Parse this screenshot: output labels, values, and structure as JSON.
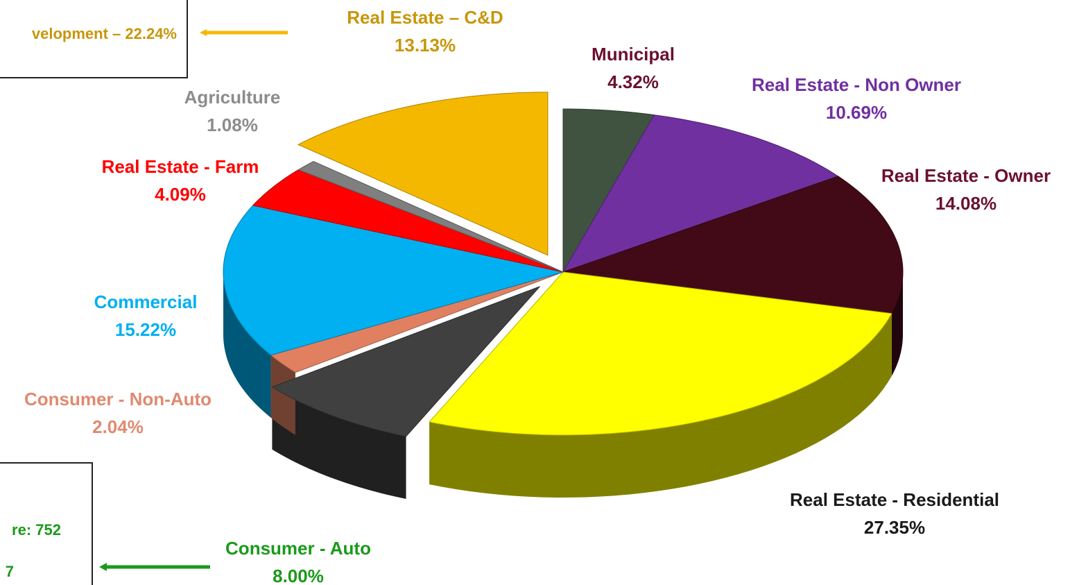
{
  "chart_data": {
    "type": "pie",
    "categories": [
      "Municipal",
      "Real Estate - Non Owner",
      "Real Estate - Owner",
      "Real Estate - Residential",
      "Consumer - Auto",
      "Consumer - Non-Auto",
      "Commercial",
      "Real Estate - Farm",
      "Agriculture",
      "Real Estate – C&D"
    ],
    "values": [
      4.32,
      10.69,
      14.08,
      27.35,
      8.0,
      2.04,
      15.22,
      4.09,
      1.08,
      13.13
    ],
    "value_labels": [
      "4.32%",
      "10.69%",
      "14.08%",
      "27.35%",
      "8.00%",
      "2.04%",
      "15.22%",
      "4.09%",
      "1.08%",
      "13.13%"
    ],
    "colors": [
      "#3f5340",
      "#7030a0",
      "#420a17",
      "#ffff00",
      "#404040",
      "#e08060",
      "#00b0f0",
      "#ff0000",
      "#7f7f7f",
      "#f5b800"
    ],
    "label_colors": [
      "#6b1030",
      "#7030a0",
      "#6b1030",
      "#1a1a1a",
      "#1a9a1a",
      "#e08a70",
      "#00b0f0",
      "#ff0000",
      "#8c8c8c",
      "#c8960a"
    ],
    "exploded": [
      "Consumer - Auto",
      "Real Estate – C&D"
    ],
    "annotations": [
      {
        "lines": [
          "velopment – 22.24%"
        ],
        "color": "#c8960a"
      },
      {
        "lines": [
          "re: 752",
          "7"
        ],
        "color": "#1a9a1a"
      }
    ]
  }
}
